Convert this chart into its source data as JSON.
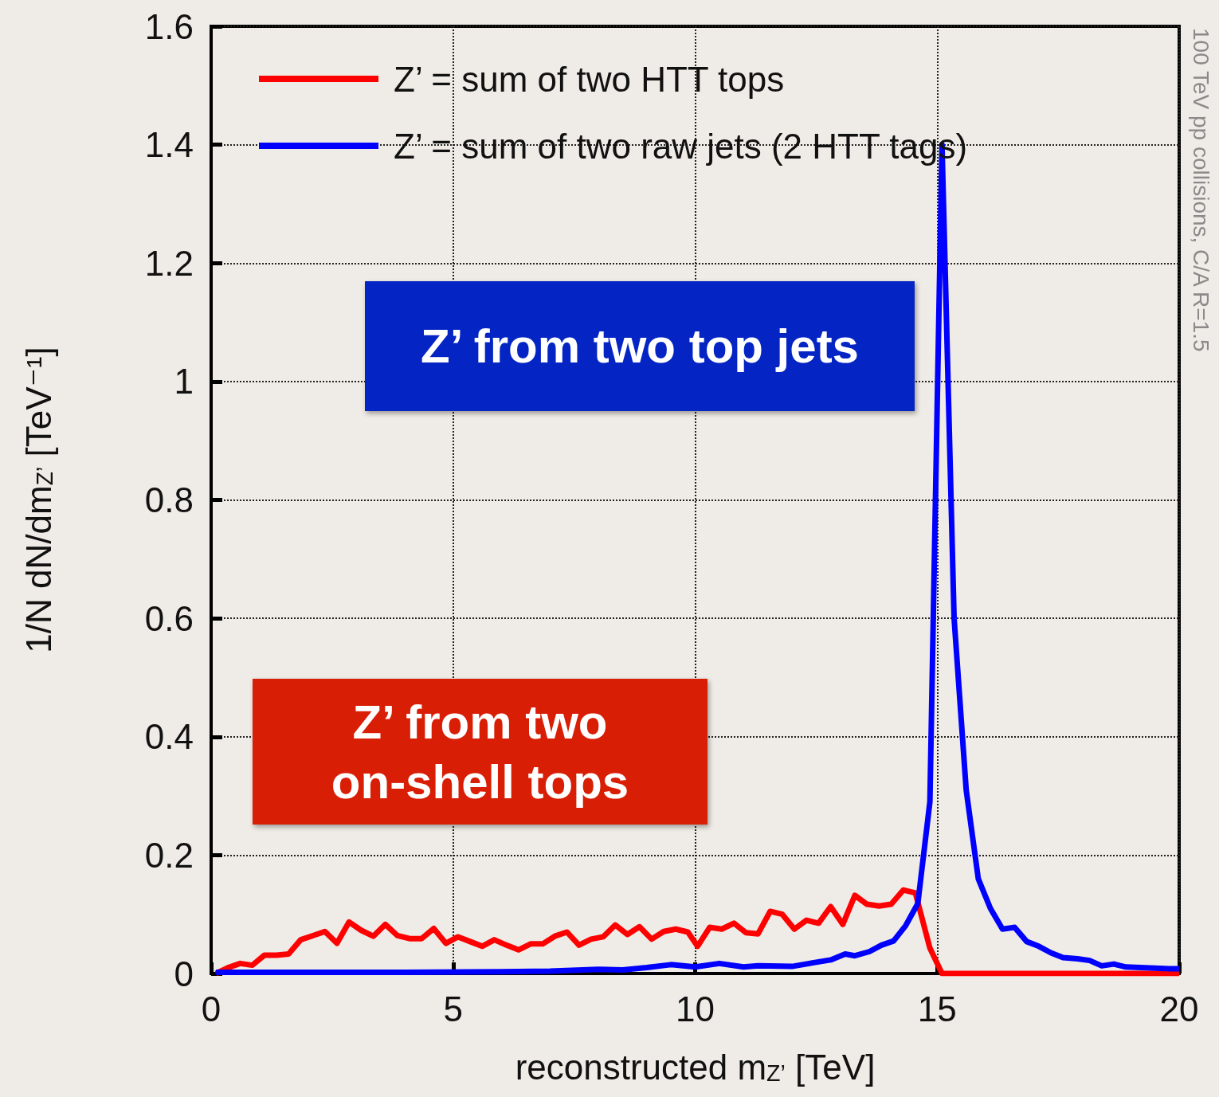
{
  "chart_data": {
    "type": "line",
    "xlabel": "reconstructed m$_{Z’}$ [TeV]",
    "ylabel": "1/N dN/dm$_{Z’}$ [TeV⁻¹]",
    "annotations": [
      "Z’ from two top jets",
      "Z’ from two\non-shell tops",
      "100 TeV pp collisions, C/A R=1.5"
    ],
    "xlim": [
      0,
      20
    ],
    "xticks": [
      0,
      5,
      10,
      15,
      20
    ],
    "ylim": [
      0,
      1.6
    ],
    "yticks": [
      0,
      0.2,
      0.4,
      0.6,
      0.8,
      1,
      1.2,
      1.4,
      1.6
    ],
    "grid": true,
    "legend": "top left",
    "marker": "none",
    "line_style": "solid",
    "series": [
      {
        "name": "Z’ = sum of two HTT tops",
        "color": "#ff0000",
        "x": [
          0.1,
          0.35,
          0.6,
          0.85,
          1.1,
          1.35,
          1.6,
          1.85,
          2.1,
          2.35,
          2.6,
          2.85,
          3.1,
          3.35,
          3.6,
          3.85,
          4.1,
          4.35,
          4.6,
          4.85,
          5.1,
          5.35,
          5.6,
          5.85,
          6.1,
          6.35,
          6.6,
          6.85,
          7.1,
          7.35,
          7.6,
          7.85,
          8.1,
          8.35,
          8.6,
          8.85,
          9.1,
          9.35,
          9.6,
          9.85,
          10.05,
          10.3,
          10.55,
          10.8,
          11.05,
          11.3,
          11.55,
          11.8,
          12.05,
          12.3,
          12.55,
          12.8,
          13.05,
          13.3,
          13.55,
          13.8,
          14.05,
          14.3,
          14.55,
          14.85,
          15.1,
          20
        ],
        "values": [
          0,
          0.01,
          0.017,
          0.014,
          0.031,
          0.031,
          0.033,
          0.057,
          0.064,
          0.071,
          0.051,
          0.087,
          0.073,
          0.063,
          0.083,
          0.064,
          0.059,
          0.059,
          0.076,
          0.051,
          0.062,
          0.054,
          0.046,
          0.057,
          0.048,
          0.04,
          0.05,
          0.05,
          0.063,
          0.07,
          0.048,
          0.058,
          0.062,
          0.082,
          0.066,
          0.079,
          0.058,
          0.071,
          0.075,
          0.07,
          0.046,
          0.078,
          0.075,
          0.085,
          0.069,
          0.067,
          0.105,
          0.1,
          0.075,
          0.09,
          0.085,
          0.113,
          0.083,
          0.132,
          0.117,
          0.114,
          0.117,
          0.141,
          0.136,
          0.043,
          0,
          0
        ]
      },
      {
        "name": "Z’ = sum of two raw jets (2 HTT tags)",
        "color": "#0000ff",
        "x": [
          0.1,
          2,
          4,
          6,
          7,
          8,
          8.5,
          9,
          9.5,
          10,
          10.5,
          11,
          11.3,
          12,
          12.5,
          12.8,
          13.1,
          13.3,
          13.6,
          13.85,
          14.1,
          14.35,
          14.6,
          14.85,
          15.1,
          15.35,
          15.6,
          15.85,
          16.1,
          16.35,
          16.6,
          16.85,
          17.1,
          17.35,
          17.6,
          17.9,
          18.15,
          18.4,
          18.65,
          18.9,
          19.2,
          19.5,
          19.8,
          20
        ],
        "values": [
          0.002,
          0.002,
          0.002,
          0.003,
          0.004,
          0.007,
          0.006,
          0.01,
          0.015,
          0.011,
          0.017,
          0.011,
          0.013,
          0.012,
          0.019,
          0.023,
          0.033,
          0.03,
          0.037,
          0.048,
          0.055,
          0.081,
          0.118,
          0.29,
          1.4,
          0.6,
          0.31,
          0.16,
          0.11,
          0.075,
          0.078,
          0.054,
          0.046,
          0.035,
          0.027,
          0.025,
          0.022,
          0.013,
          0.016,
          0.011,
          0.01,
          0.009,
          0.008,
          0.008
        ]
      }
    ]
  }
}
